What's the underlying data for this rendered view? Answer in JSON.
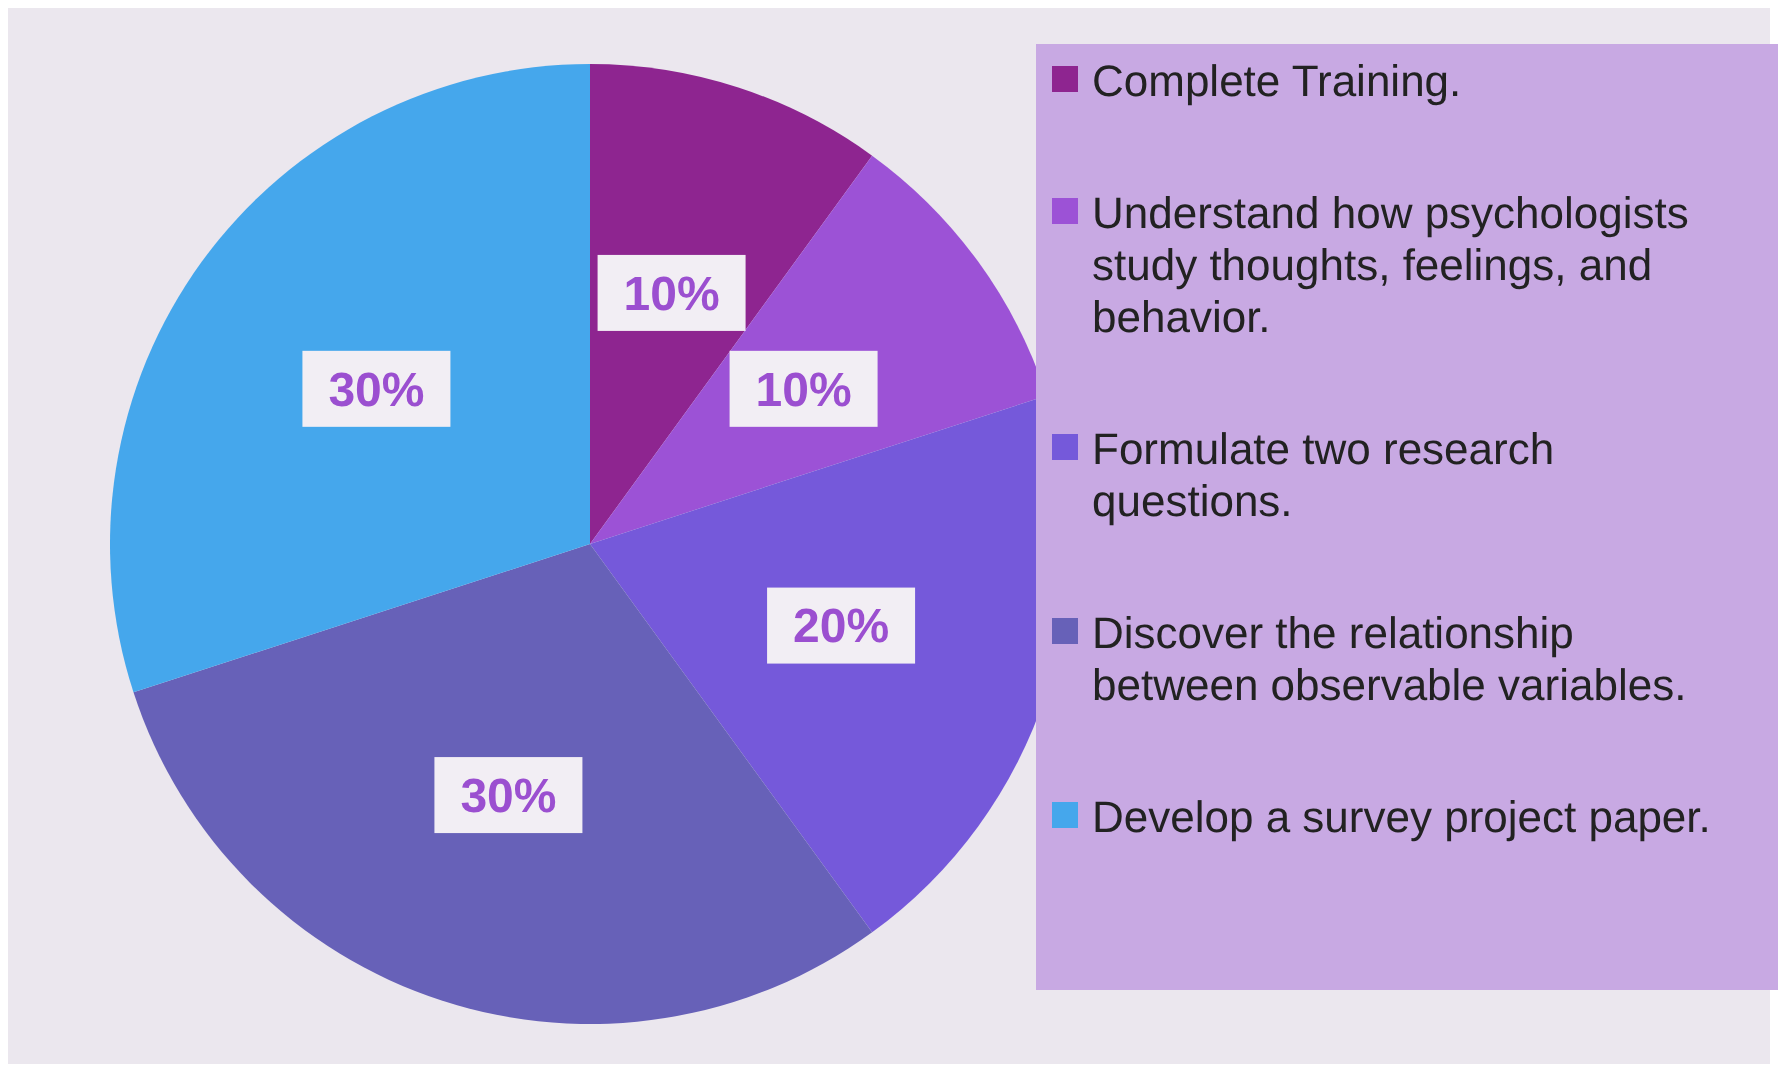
{
  "chart_data": {
    "type": "pie",
    "categories": [
      "Complete Training.",
      "Understand how psychologists study thoughts, feelings, and behavior.",
      "Formulate two research questions.",
      "Discover the relationship between observable variables.",
      "Develop a survey project paper."
    ],
    "values": [
      10,
      10,
      20,
      30,
      30
    ],
    "colors": [
      "#8e2590",
      "#9c52d6",
      "#7559da",
      "#6761b8",
      "#45a7ec"
    ],
    "value_labels": [
      "10%",
      "10%",
      "20%",
      "30%",
      "30%"
    ],
    "legend": "right"
  }
}
